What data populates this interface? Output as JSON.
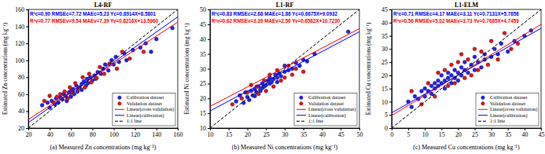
{
  "chart_data": [
    {
      "type": "scatter",
      "title": "L4-RF",
      "x_label": "(a) Measured Zn concentrations (mg kg⁻¹)",
      "y_label": "Estimated Zn concentrations (mg kg⁻¹)",
      "xlim": [
        20,
        160
      ],
      "ylim": [
        20,
        160
      ],
      "xticks": [
        20,
        40,
        60,
        80,
        100,
        120,
        140,
        160
      ],
      "yticks": [
        20,
        40,
        60,
        80,
        100,
        120,
        140,
        160
      ],
      "legend": "lower right",
      "annotations": [
        {
          "text": "R²c=0.90 RMSEc=7.72 MAEc=5.23 Yc=0.8914X+8.5801",
          "color": "#0000ff"
        },
        {
          "text": "R²v=0.77 RMSEv=9.54 MAEv=7.39 Yv=0.8216X+13.5960",
          "color": "#ff0000"
        }
      ],
      "series": [
        {
          "name": "Calibration dataset",
          "type": "scatter",
          "marker": "circle",
          "color": "#2323e6",
          "x": [
            33,
            38,
            40,
            42,
            45,
            46,
            48,
            50,
            52,
            53,
            55,
            56,
            58,
            60,
            60,
            62,
            63,
            65,
            66,
            68,
            70,
            70,
            72,
            74,
            75,
            76,
            78,
            80,
            82,
            83,
            85,
            88,
            90,
            92,
            95,
            98,
            100,
            102,
            105,
            110,
            112,
            118,
            125,
            130,
            135,
            140,
            155
          ],
          "values": [
            47,
            50,
            44,
            52,
            48,
            55,
            50,
            56,
            54,
            60,
            58,
            52,
            62,
            64,
            57,
            66,
            60,
            70,
            63,
            68,
            72,
            65,
            75,
            70,
            78,
            73,
            80,
            76,
            82,
            78,
            86,
            84,
            90,
            95,
            88,
            100,
            95,
            104,
            98,
            108,
            100,
            112,
            115,
            120,
            110,
            125,
            138
          ]
        },
        {
          "name": "Validation dataset",
          "type": "scatter",
          "marker": "circle",
          "color": "#d41a1a",
          "x": [
            35,
            40,
            44,
            47,
            50,
            54,
            57,
            59,
            61,
            64,
            67,
            71,
            73,
            77,
            79,
            84,
            87,
            91,
            96,
            103,
            108,
            115,
            128
          ],
          "values": [
            52,
            58,
            50,
            57,
            60,
            63,
            55,
            68,
            62,
            73,
            66,
            80,
            68,
            84,
            74,
            79,
            92,
            84,
            96,
            90,
            110,
            102,
            110
          ]
        },
        {
          "name": "Linear(cross validation)",
          "type": "line",
          "line_style": "solid",
          "color": "#ff0000",
          "x": [
            20,
            160
          ],
          "values": [
            30.03,
            145.05
          ]
        },
        {
          "name": "Linear(calibration)",
          "type": "line",
          "line_style": "solid",
          "color": "#0000ff",
          "x": [
            20,
            160
          ],
          "values": [
            26.41,
            151.2
          ]
        },
        {
          "name": "1:1 line",
          "type": "line",
          "line_style": "dashed",
          "color": "#000000",
          "x": [
            20,
            160
          ],
          "values": [
            20,
            160
          ]
        }
      ]
    },
    {
      "type": "scatter",
      "title": "L1-RF",
      "x_label": "(b) Measured Ni concentrations (mg kg⁻¹)",
      "y_label": "Estimated Ni concentrations (mg kg⁻¹)",
      "xlim": [
        10,
        50
      ],
      "ylim": [
        10,
        50
      ],
      "xticks": [
        10,
        15,
        20,
        25,
        30,
        35,
        40,
        45,
        50
      ],
      "yticks": [
        10,
        15,
        20,
        25,
        30,
        35,
        40,
        45,
        50
      ],
      "legend": "lower right",
      "annotations": [
        {
          "text": "R²c=0.83 RMSEc=2.68 MAEc=1.86 Yc=0.6675X+9.0932",
          "color": "#0000ff"
        },
        {
          "text": "R²v=0.62 RMSEv=3.39 MAEv=2.56 Yv=0.6562X+10.7230",
          "color": "#ff0000"
        }
      ],
      "series": [
        {
          "name": "Calibration dataset",
          "type": "scatter",
          "marker": "circle",
          "color": "#2323e6",
          "x": [
            17,
            18,
            19,
            19.5,
            20,
            20.5,
            21,
            21.5,
            22,
            22,
            22.5,
            23,
            23.5,
            24,
            24,
            24.5,
            25,
            25.5,
            26,
            26,
            26.5,
            27,
            27.5,
            28,
            28,
            28.5,
            29,
            30,
            30,
            31,
            32,
            33,
            34,
            35,
            36,
            38,
            47
          ],
          "values": [
            19,
            21,
            18.5,
            22,
            20.5,
            19.5,
            22.5,
            21,
            23,
            20.8,
            22,
            24,
            22.5,
            23.5,
            25,
            24,
            24.5,
            26,
            25,
            27,
            25.5,
            26.5,
            28,
            27,
            25.5,
            28.5,
            27.5,
            29,
            31,
            29.5,
            30,
            32,
            31,
            33,
            32.5,
            35,
            42.5
          ]
        },
        {
          "name": "Validation dataset",
          "type": "scatter",
          "marker": "circle",
          "color": "#d41a1a",
          "x": [
            16,
            18.5,
            20,
            21,
            22.5,
            23,
            24.5,
            25,
            26,
            27,
            28,
            29,
            30,
            31,
            32,
            33,
            35
          ],
          "values": [
            18,
            20,
            22,
            24.5,
            24,
            21.5,
            26,
            22.5,
            28,
            24,
            29.5,
            26,
            27,
            31,
            28,
            30,
            29
          ]
        },
        {
          "name": "Linear(cross validation)",
          "type": "line",
          "line_style": "solid",
          "color": "#ff0000",
          "x": [
            10,
            50
          ],
          "values": [
            17.29,
            43.53
          ]
        },
        {
          "name": "Linear(calibration)",
          "type": "line",
          "line_style": "solid",
          "color": "#0000ff",
          "x": [
            10,
            50
          ],
          "values": [
            15.77,
            42.47
          ]
        },
        {
          "name": "1:1 line",
          "type": "line",
          "line_style": "dashed",
          "color": "#000000",
          "x": [
            10,
            50
          ],
          "values": [
            10,
            50
          ]
        }
      ]
    },
    {
      "type": "scatter",
      "title": "L1-ELM",
      "x_label": "(c) Measured Cu concentrations (mg kg⁻¹)",
      "y_label": "Estimated Cu concentrations (mg kg⁻¹)",
      "xlim": [
        0,
        45
      ],
      "ylim": [
        0,
        45
      ],
      "xticks": [
        0,
        5,
        10,
        15,
        20,
        25,
        30,
        35,
        40,
        45
      ],
      "yticks": [
        0,
        5,
        10,
        15,
        20,
        25,
        30,
        35,
        40,
        45
      ],
      "legend": "lower right",
      "annotations": [
        {
          "text": "R²c=0.71 RMSEc=4.17 MAEc=3.11 Yc=0.7131X+5.7656",
          "color": "#0000ff"
        },
        {
          "text": "R²v=0.56 RMSEv=5.02 MAEv=3.73 Yv=0.7685X+4.7459",
          "color": "#ff0000"
        }
      ],
      "series": [
        {
          "name": "Calibration dataset",
          "type": "scatter",
          "marker": "circle",
          "color": "#2323e6",
          "x": [
            5,
            6,
            7,
            8,
            9,
            10,
            10,
            11,
            12,
            12,
            13,
            13,
            14,
            14,
            15,
            15,
            16,
            16,
            17,
            17,
            18,
            18,
            19,
            19,
            20,
            20,
            21,
            21,
            22,
            22,
            23,
            24,
            25,
            25,
            26,
            27,
            28,
            28,
            30,
            31,
            32,
            33,
            35,
            37,
            40,
            42
          ],
          "values": [
            10,
            8,
            12,
            11,
            14,
            12,
            15,
            14,
            16,
            13,
            17,
            15,
            18,
            16,
            17,
            20,
            18,
            15,
            19,
            21,
            17,
            20,
            22,
            19,
            21,
            18,
            23,
            20,
            22,
            25,
            21,
            24,
            22,
            27,
            25,
            23,
            28,
            26,
            27,
            30,
            28,
            32,
            29,
            33,
            35,
            37
          ]
        },
        {
          "name": "Validation dataset",
          "type": "scatter",
          "marker": "circle",
          "color": "#d41a1a",
          "x": [
            6,
            9,
            11,
            13,
            14,
            16,
            17,
            18,
            19,
            20,
            21,
            22,
            23,
            24,
            25,
            26,
            27,
            29,
            30,
            32,
            34,
            36,
            38
          ],
          "values": [
            14,
            9,
            17,
            12,
            21,
            22,
            16,
            24,
            17,
            25,
            28,
            19,
            26,
            20,
            30,
            22,
            29,
            24,
            33,
            26,
            36,
            30,
            32
          ]
        },
        {
          "name": "Linear(cross validation)",
          "type": "line",
          "line_style": "solid",
          "color": "#ff0000",
          "x": [
            0,
            45
          ],
          "values": [
            4.75,
            39.33
          ]
        },
        {
          "name": "Linear(calibration)",
          "type": "line",
          "line_style": "solid",
          "color": "#0000ff",
          "x": [
            0,
            45
          ],
          "values": [
            5.77,
            37.85
          ]
        },
        {
          "name": "1:1 line",
          "type": "line",
          "line_style": "dashed",
          "color": "#000000",
          "x": [
            0,
            45
          ],
          "values": [
            0,
            45
          ]
        }
      ]
    }
  ]
}
